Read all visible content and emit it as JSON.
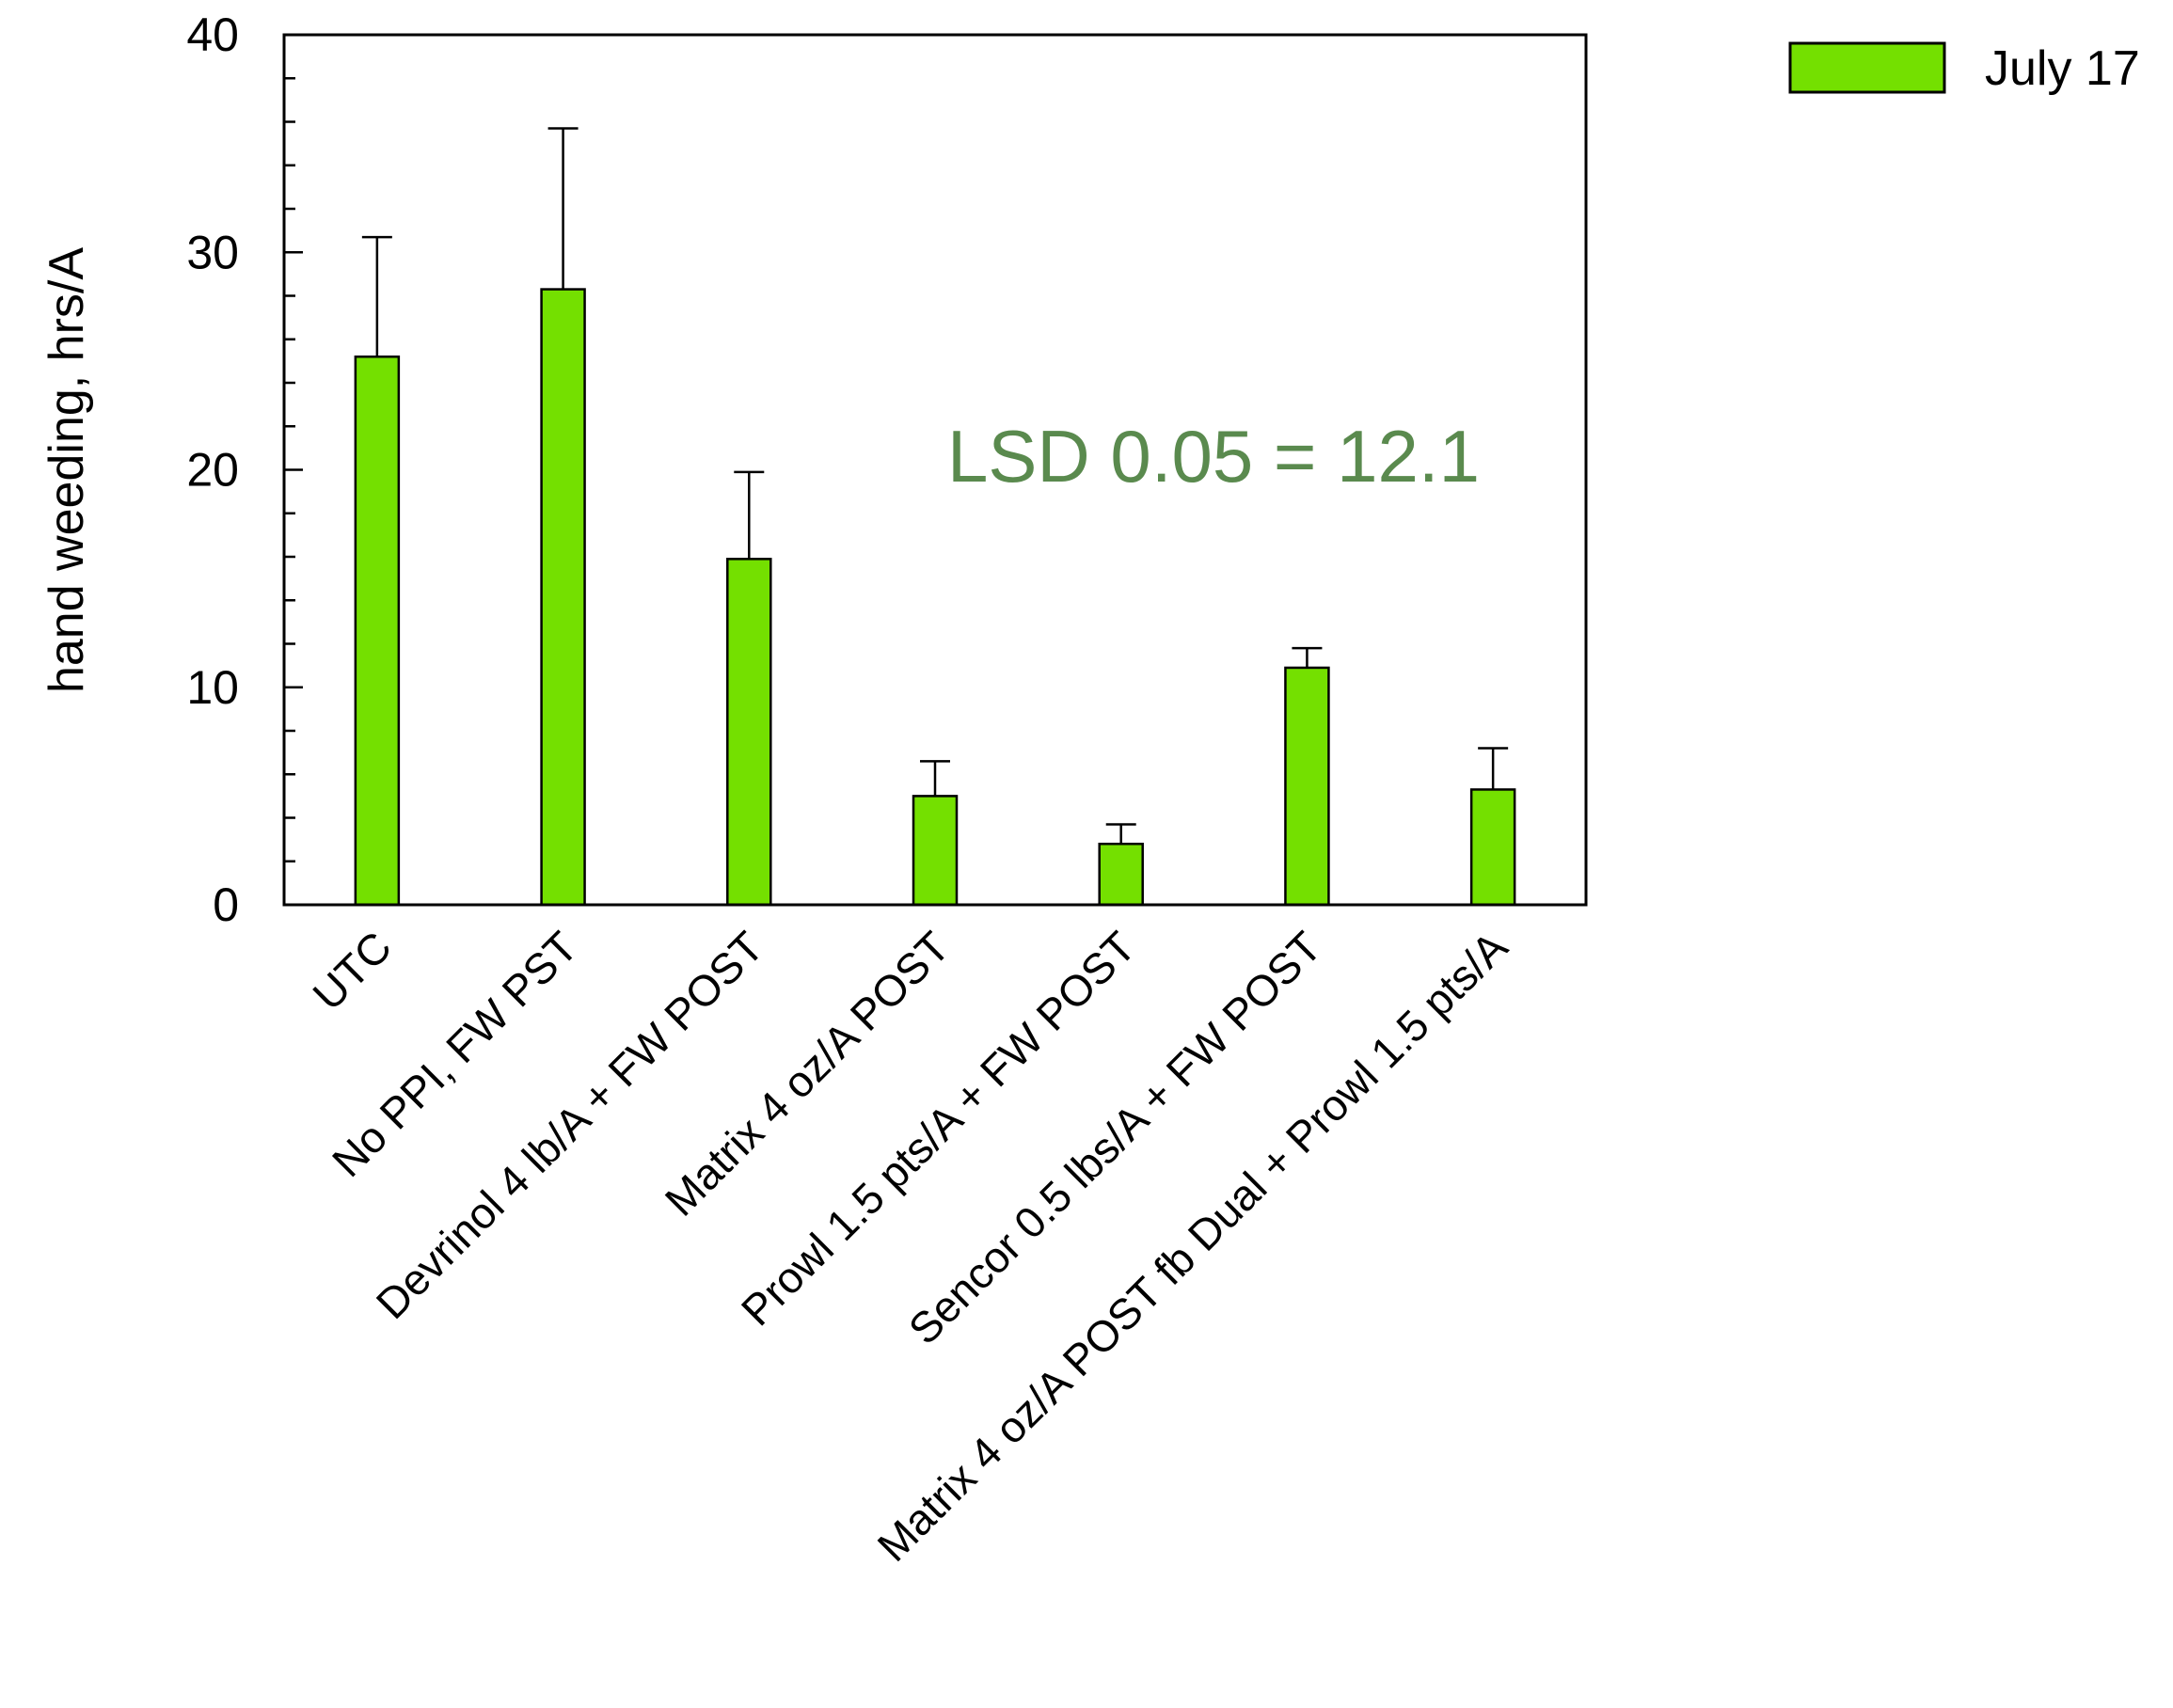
{
  "chart_data": {
    "type": "bar",
    "ylabel": "hand weeding, hrs/A",
    "xlabel": "",
    "ylim": [
      0,
      40
    ],
    "yticks": [
      0,
      10,
      20,
      30,
      40
    ],
    "y_minor_step": 2,
    "grid": false,
    "legend_position": "top-right, outside plot",
    "categories": [
      "UTC",
      "No PPI, FW PST",
      "Devrinol 4 lb/A + FW POST",
      "Matrix 4 oz/A POST",
      "Prowl 1.5 pts/A + FW POST",
      "Sencor 0.5 lbs/A + FW POST",
      "Matrix 4 oz/A POST fb Dual + Prowl 1.5 pts/A"
    ],
    "series": [
      {
        "name": "July 17",
        "color": "#74e000",
        "values": [
          25.2,
          28.3,
          15.9,
          5.0,
          2.8,
          10.9,
          5.3
        ],
        "error_upper": [
          30.7,
          35.7,
          19.9,
          6.6,
          3.7,
          11.8,
          7.2
        ]
      }
    ],
    "annotations": [
      {
        "text": "LSD 0.05 = 12.1",
        "color": "#5a8a4e"
      }
    ]
  }
}
